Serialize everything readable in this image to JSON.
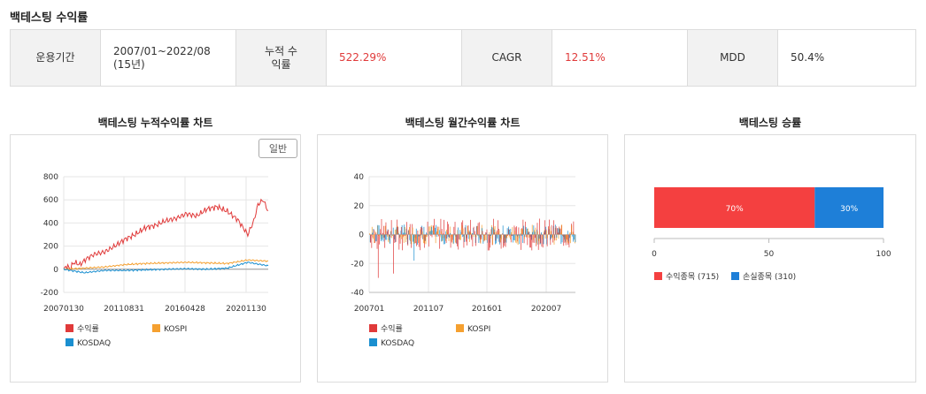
{
  "page": {
    "title": "백테스팅 수익률"
  },
  "summary": {
    "period_label": "운용기간",
    "period_value": "2007/01~2022/08 (15년)",
    "cum_label": "누적 수익률",
    "cum_value": "522.29%",
    "cagr_label": "CAGR",
    "cagr_value": "12.51%",
    "mdd_label": "MDD",
    "mdd_value": "50.4%"
  },
  "colors": {
    "strategy": "#e03a3a",
    "kospi": "#f5a030",
    "kosdaq": "#1a8fd0",
    "win": "#f44040",
    "loss": "#1e7fd8"
  },
  "chart_data": [
    {
      "type": "line",
      "title": "백테스팅 누적수익률 차트",
      "mode_button": "일반",
      "ylim": [
        -200,
        800
      ],
      "y_ticks": [
        "800",
        "600",
        "400",
        "200",
        "0",
        "-200"
      ],
      "x_ticks": [
        "20070130",
        "20110831",
        "20160428",
        "20201130"
      ],
      "legend": [
        "수익률",
        "KOSPI",
        "KOSDAQ"
      ],
      "series": [
        {
          "name": "수익률",
          "x": [
            0,
            3,
            6,
            10,
            16,
            22,
            30,
            40,
            50,
            60,
            70,
            80,
            90,
            100,
            110,
            120,
            130,
            140,
            150,
            160,
            170,
            180,
            186,
            190,
            195,
            200
          ],
          "values": [
            0,
            30,
            5,
            60,
            40,
            90,
            130,
            150,
            200,
            260,
            300,
            360,
            380,
            420,
            440,
            480,
            460,
            520,
            540,
            500,
            430,
            300,
            420,
            560,
            600,
            500
          ]
        },
        {
          "name": "KOSPI",
          "x": [
            0,
            20,
            40,
            60,
            80,
            100,
            120,
            140,
            160,
            180,
            200
          ],
          "values": [
            0,
            10,
            20,
            40,
            50,
            55,
            60,
            55,
            50,
            80,
            70
          ]
        },
        {
          "name": "KOSDAQ",
          "x": [
            0,
            20,
            40,
            60,
            80,
            100,
            120,
            140,
            160,
            180,
            200
          ],
          "values": [
            0,
            -30,
            -10,
            -10,
            -5,
            0,
            5,
            0,
            10,
            60,
            30
          ]
        }
      ]
    },
    {
      "type": "bar",
      "title": "백테스팅 월간수익률 차트",
      "ylim": [
        -40,
        40
      ],
      "y_ticks": [
        "40",
        "20",
        "0",
        "-20",
        "-40"
      ],
      "x_ticks": [
        "200701",
        "201107",
        "201601",
        "202007"
      ],
      "legend": [
        "수익률",
        "KOSPI",
        "KOSDAQ"
      ]
    },
    {
      "type": "bar",
      "title": "백테스팅 승률",
      "x_ticks": [
        "0",
        "50",
        "100"
      ],
      "win_pct": 70,
      "loss_pct": 30,
      "win_label": "70%",
      "loss_label": "30%",
      "legend": [
        "수익종목 (715)",
        "손실종목 (310)"
      ]
    }
  ]
}
